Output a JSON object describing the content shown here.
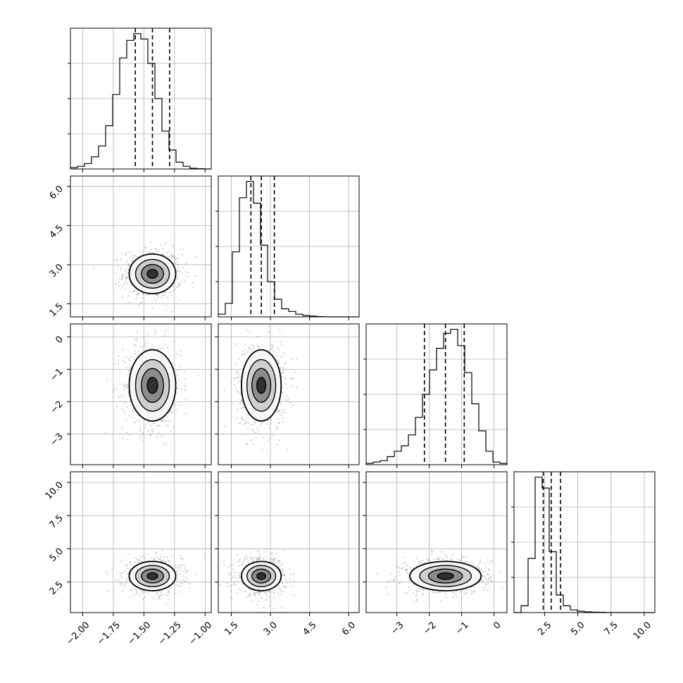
{
  "chart_data": {
    "type": "corner",
    "grid": true,
    "parameters": [
      {
        "range": [
          -2.1,
          -0.95
        ],
        "ticks": [
          -2.0,
          -1.75,
          -1.5,
          -1.25,
          -1.0
        ],
        "tick_labels": [
          "−2.00",
          "−1.75",
          "−1.50",
          "−1.25",
          "−1.00"
        ],
        "quantiles": [
          -1.57,
          -1.43,
          -1.29
        ],
        "hist": [
          0.01,
          0.02,
          0.04,
          0.09,
          0.17,
          0.32,
          0.55,
          0.82,
          0.95,
          1.0,
          0.96,
          0.78,
          0.52,
          0.28,
          0.14,
          0.05,
          0.02,
          0.005,
          0.002,
          0.0
        ],
        "center": -1.43,
        "sigma": 0.095
      },
      {
        "range": [
          1.0,
          6.4
        ],
        "ticks": [
          1.5,
          3.0,
          4.5,
          6.0
        ],
        "tick_labels": [
          "1.5",
          "3.0",
          "4.5",
          "6.0"
        ],
        "quantiles": [
          2.25,
          2.65,
          3.15
        ],
        "hist": [
          0.02,
          0.1,
          0.48,
          0.88,
          1.0,
          0.84,
          0.53,
          0.26,
          0.13,
          0.06,
          0.04,
          0.02,
          0.01,
          0.005,
          0.002,
          0.001,
          0.0,
          0.0,
          0.0,
          0.0
        ],
        "center": 2.65,
        "sigma": 0.38
      },
      {
        "range": [
          -3.95,
          0.4
        ],
        "ticks": [
          -3,
          -2,
          -1,
          0
        ],
        "tick_labels": [
          "−3",
          "−2",
          "−1",
          "0"
        ],
        "quantiles": [
          -2.15,
          -1.5,
          -0.92
        ],
        "hist": [
          0.01,
          0.02,
          0.03,
          0.06,
          0.1,
          0.14,
          0.22,
          0.35,
          0.52,
          0.7,
          0.86,
          0.97,
          1.0,
          0.88,
          0.68,
          0.45,
          0.25,
          0.1,
          0.02,
          0.01
        ],
        "center": -1.5,
        "sigma": 0.55
      },
      {
        "range": [
          0.2,
          10.8
        ],
        "ticks": [
          2.5,
          5.0,
          7.5,
          10.0
        ],
        "tick_labels": [
          "2.5",
          "5.0",
          "7.5",
          "10.0"
        ],
        "quantiles": [
          2.4,
          3.0,
          3.7
        ],
        "hist": [
          0.0,
          0.05,
          0.4,
          1.0,
          0.92,
          0.45,
          0.13,
          0.05,
          0.02,
          0.01,
          0.005,
          0.003,
          0.002,
          0.001,
          0.001,
          0.0,
          0.0,
          0.0,
          0.0,
          0.0
        ],
        "center": 2.95,
        "sigma": 0.55
      }
    ]
  }
}
